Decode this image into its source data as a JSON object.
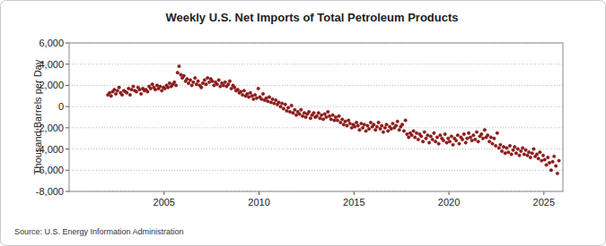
{
  "chart_data": {
    "type": "scatter",
    "title": "Weekly U.S. Net Imports of Total Petroleum Products",
    "y_label": "Thousand Barrels per Day",
    "source": "Source: U.S. Energy Information Administration",
    "color": "#8b1a1a",
    "marker": "circle",
    "grid": true,
    "xlim": [
      2000,
      2026
    ],
    "xticks": [
      2005,
      2010,
      2015,
      2020,
      2025
    ],
    "ylim": [
      -8000,
      6000
    ],
    "yticks": [
      {
        "value": -8000,
        "label": "-8,000"
      },
      {
        "value": -6000,
        "label": "-6,000"
      },
      {
        "value": -4000,
        "label": "-4,000"
      },
      {
        "value": -2000,
        "label": "-2,000"
      },
      0,
      {
        "value": 2000,
        "label": "2,000"
      },
      {
        "value": 4000,
        "label": "4,000"
      },
      {
        "value": 6000,
        "label": "6,000"
      }
    ],
    "x": [
      2002.04,
      2002.13,
      2002.21,
      2002.29,
      2002.38,
      2002.46,
      2002.54,
      2002.63,
      2002.71,
      2002.79,
      2002.88,
      2002.96,
      2003.04,
      2003.13,
      2003.21,
      2003.29,
      2003.38,
      2003.46,
      2003.54,
      2003.63,
      2003.71,
      2003.79,
      2003.88,
      2003.96,
      2004.04,
      2004.13,
      2004.21,
      2004.29,
      2004.38,
      2004.46,
      2004.54,
      2004.63,
      2004.71,
      2004.79,
      2004.88,
      2004.96,
      2005.04,
      2005.13,
      2005.21,
      2005.29,
      2005.38,
      2005.46,
      2005.54,
      2005.63,
      2005.71,
      2005.79,
      2005.88,
      2005.96,
      2006.04,
      2006.13,
      2006.21,
      2006.29,
      2006.38,
      2006.46,
      2006.54,
      2006.63,
      2006.71,
      2006.79,
      2006.88,
      2006.96,
      2007.04,
      2007.13,
      2007.21,
      2007.29,
      2007.38,
      2007.46,
      2007.54,
      2007.63,
      2007.71,
      2007.79,
      2007.88,
      2007.96,
      2008.04,
      2008.13,
      2008.21,
      2008.29,
      2008.38,
      2008.46,
      2008.54,
      2008.63,
      2008.71,
      2008.79,
      2008.88,
      2008.96,
      2009.04,
      2009.13,
      2009.21,
      2009.29,
      2009.38,
      2009.46,
      2009.54,
      2009.63,
      2009.71,
      2009.79,
      2009.88,
      2009.96,
      2010.04,
      2010.13,
      2010.21,
      2010.29,
      2010.38,
      2010.46,
      2010.54,
      2010.63,
      2010.71,
      2010.79,
      2010.88,
      2010.96,
      2011.04,
      2011.13,
      2011.21,
      2011.29,
      2011.38,
      2011.46,
      2011.54,
      2011.63,
      2011.71,
      2011.79,
      2011.88,
      2011.96,
      2012.04,
      2012.13,
      2012.21,
      2012.29,
      2012.38,
      2012.46,
      2012.54,
      2012.63,
      2012.71,
      2012.79,
      2012.88,
      2012.96,
      2013.04,
      2013.13,
      2013.21,
      2013.29,
      2013.38,
      2013.46,
      2013.54,
      2013.63,
      2013.71,
      2013.79,
      2013.88,
      2013.96,
      2014.04,
      2014.13,
      2014.21,
      2014.29,
      2014.38,
      2014.46,
      2014.54,
      2014.63,
      2014.71,
      2014.79,
      2014.88,
      2014.96,
      2015.04,
      2015.13,
      2015.21,
      2015.29,
      2015.38,
      2015.46,
      2015.54,
      2015.63,
      2015.71,
      2015.79,
      2015.88,
      2015.96,
      2016.04,
      2016.13,
      2016.21,
      2016.29,
      2016.38,
      2016.46,
      2016.54,
      2016.63,
      2016.71,
      2016.79,
      2016.88,
      2016.96,
      2017.04,
      2017.13,
      2017.21,
      2017.29,
      2017.38,
      2017.46,
      2017.54,
      2017.63,
      2017.71,
      2017.79,
      2017.88,
      2017.96,
      2018.04,
      2018.13,
      2018.21,
      2018.29,
      2018.38,
      2018.46,
      2018.54,
      2018.63,
      2018.71,
      2018.79,
      2018.88,
      2018.96,
      2019.04,
      2019.13,
      2019.21,
      2019.29,
      2019.38,
      2019.46,
      2019.54,
      2019.63,
      2019.71,
      2019.79,
      2019.88,
      2019.96,
      2020.04,
      2020.13,
      2020.21,
      2020.29,
      2020.38,
      2020.46,
      2020.54,
      2020.63,
      2020.71,
      2020.79,
      2020.88,
      2020.96,
      2021.04,
      2021.13,
      2021.21,
      2021.29,
      2021.38,
      2021.46,
      2021.54,
      2021.63,
      2021.71,
      2021.79,
      2021.88,
      2021.96,
      2022.04,
      2022.13,
      2022.21,
      2022.29,
      2022.38,
      2022.46,
      2022.54,
      2022.63,
      2022.71,
      2022.79,
      2022.88,
      2022.96,
      2023.04,
      2023.13,
      2023.21,
      2023.29,
      2023.38,
      2023.46,
      2023.54,
      2023.63,
      2023.71,
      2023.79,
      2023.88,
      2023.96,
      2024.04,
      2024.13,
      2024.21,
      2024.29,
      2024.38,
      2024.46,
      2024.54,
      2024.63,
      2024.71,
      2024.79,
      2024.88,
      2024.96,
      2025.04,
      2025.13,
      2025.21,
      2025.29,
      2025.38,
      2025.46,
      2025.54,
      2025.63,
      2025.71,
      2025.79
    ],
    "values": [
      1100,
      1300,
      1000,
      1400,
      1600,
      1200,
      1500,
      1800,
      1300,
      1100,
      1500,
      1400,
      1300,
      1700,
      1100,
      1600,
      1900,
      1500,
      1400,
      1800,
      1600,
      1200,
      1700,
      1500,
      1600,
      1400,
      1900,
      1700,
      2100,
      1800,
      1600,
      2000,
      1700,
      1900,
      1500,
      1800,
      1700,
      2000,
      1800,
      2200,
      1900,
      2100,
      2300,
      2000,
      3200,
      3800,
      3000,
      2700,
      2900,
      2400,
      2600,
      2200,
      2500,
      2000,
      2300,
      2700,
      2100,
      2400,
      2000,
      1800,
      2200,
      2500,
      2100,
      2700,
      2300,
      2600,
      2400,
      2000,
      2300,
      2100,
      2500,
      1900,
      2200,
      2000,
      2300,
      1900,
      2100,
      2400,
      1700,
      2000,
      1800,
      1500,
      1600,
      1300,
      1400,
      1100,
      1500,
      1000,
      1200,
      900,
      1300,
      1000,
      700,
      1100,
      800,
      1700,
      900,
      700,
      1200,
      600,
      800,
      500,
      900,
      400,
      700,
      300,
      600,
      200,
      400,
      0,
      300,
      -200,
      200,
      -400,
      -100,
      -500,
      100,
      -600,
      -300,
      -800,
      -500,
      -700,
      -300,
      -900,
      -600,
      -1000,
      -700,
      -500,
      -1100,
      -800,
      -600,
      -1000,
      -900,
      -600,
      -1100,
      -800,
      -1200,
      -700,
      -1000,
      -500,
      -900,
      -1200,
      -800,
      -1300,
      -1000,
      -1300,
      -900,
      -1500,
      -1200,
      -1700,
      -1400,
      -1800,
      -1300,
      -1600,
      -2000,
      -1700,
      -1900,
      -1500,
      -1800,
      -2200,
      -1600,
      -2000,
      -1700,
      -2300,
      -1800,
      -2100,
      -1500,
      -1900,
      -1700,
      -2200,
      -1900,
      -1500,
      -2100,
      -1800,
      -2400,
      -2000,
      -1700,
      -2300,
      -1900,
      -2100,
      -1600,
      -2000,
      -1800,
      -1400,
      -2200,
      -1900,
      -1700,
      -2300,
      -1300,
      -2600,
      -2900,
      -2500,
      -2700,
      -2300,
      -2900,
      -2500,
      -3100,
      -2600,
      -2800,
      -3300,
      -2400,
      -3000,
      -2700,
      -3400,
      -2800,
      -3100,
      -2500,
      -3300,
      -2900,
      -3500,
      -2700,
      -3000,
      -3200,
      -2600,
      -3400,
      -3000,
      -3300,
      -2800,
      -3600,
      -3000,
      -3200,
      -2700,
      -3500,
      -2900,
      -3100,
      -2600,
      -3400,
      -3000,
      -2500,
      -2900,
      -3200,
      -2700,
      -3100,
      -2400,
      -3300,
      -2800,
      -2600,
      -3000,
      -2200,
      -2900,
      -2700,
      -3300,
      -2900,
      -3500,
      -3000,
      -3700,
      -2500,
      -3900,
      -3600,
      -4200,
      -3800,
      -4400,
      -3900,
      -4300,
      -3700,
      -4500,
      -4100,
      -3800,
      -4400,
      -4000,
      -4600,
      -4200,
      -3900,
      -4500,
      -4100,
      -4600,
      -4300,
      -4800,
      -4400,
      -4000,
      -4700,
      -4500,
      -4900,
      -4300,
      -5100,
      -4600,
      -5000,
      -5500,
      -4800,
      -5300,
      -6000,
      -5200,
      -4700,
      -5600,
      -6300,
      -5100
    ]
  }
}
